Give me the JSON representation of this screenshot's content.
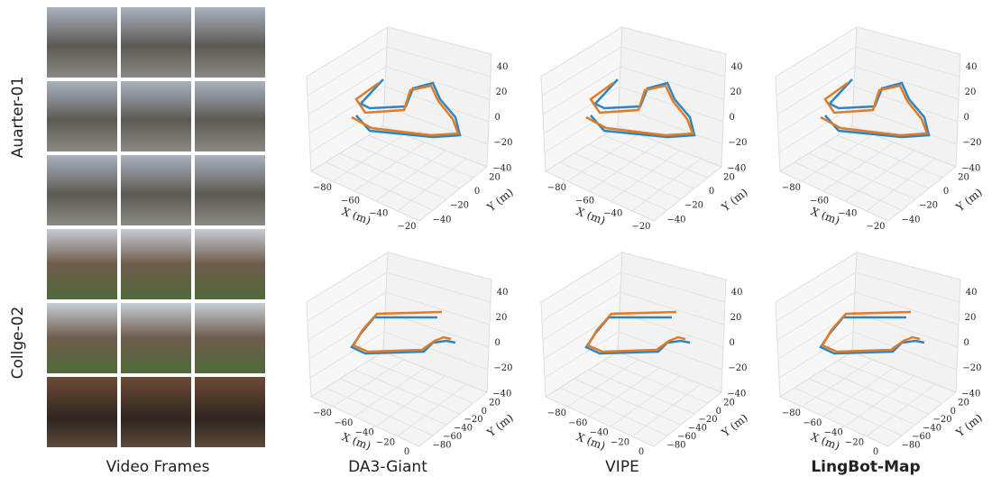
{
  "row_labels": [
    "Auarter-01",
    "Collge-02"
  ],
  "column_labels": [
    "Video Frames",
    "DA3-Giant",
    "VIPE",
    "LingBot-Map"
  ],
  "plots": [
    {
      "x_label": "X (m)",
      "y_label": "Y (m)",
      "x_ticks": [
        "−80",
        "−60",
        "−40",
        "−20"
      ],
      "y_ticks": [
        "−40",
        "−20",
        "0",
        "20"
      ],
      "z_ticks": [
        "40",
        "20",
        "0",
        "−20",
        "−40"
      ]
    },
    {
      "x_label": "X (m)",
      "y_label": "Y (m)",
      "x_ticks": [
        "−80",
        "−60",
        "−40",
        "−20"
      ],
      "y_ticks": [
        "−40",
        "−20",
        "0",
        "20"
      ],
      "z_ticks": [
        "40",
        "20",
        "0",
        "−20",
        "−40"
      ]
    },
    {
      "x_label": "X (m)",
      "y_label": "Y (m)",
      "x_ticks": [
        "−80",
        "−60",
        "−40",
        "−20"
      ],
      "y_ticks": [
        "−40",
        "−20",
        "0",
        "20"
      ],
      "z_ticks": [
        "40",
        "20",
        "0",
        "−20",
        "−40"
      ]
    },
    {
      "x_label": "X (m)",
      "y_label": "Y (m)",
      "x_ticks": [
        "−80",
        "−60",
        "−40",
        "−20",
        "0"
      ],
      "y_ticks": [
        "−80",
        "−60",
        "−40",
        "−20",
        "0",
        "20"
      ],
      "z_ticks": [
        "40",
        "20",
        "0",
        "−20",
        "−40"
      ]
    },
    {
      "x_label": "X (m)",
      "y_label": "Y (m)",
      "x_ticks": [
        "−80",
        "−60",
        "−40",
        "−20",
        "0"
      ],
      "y_ticks": [
        "−80",
        "−60",
        "−40",
        "−20",
        "0",
        "20"
      ],
      "z_ticks": [
        "40",
        "20",
        "0",
        "−20",
        "−40"
      ]
    },
    {
      "x_label": "X (m)",
      "y_label": "Y (m)",
      "x_ticks": [
        "−80",
        "−60",
        "−40",
        "−20",
        "0"
      ],
      "y_ticks": [
        "−80",
        "−60",
        "−40",
        "−20",
        "0",
        "20"
      ],
      "z_ticks": [
        "40",
        "20",
        "0",
        "−20",
        "−40"
      ]
    }
  ]
}
